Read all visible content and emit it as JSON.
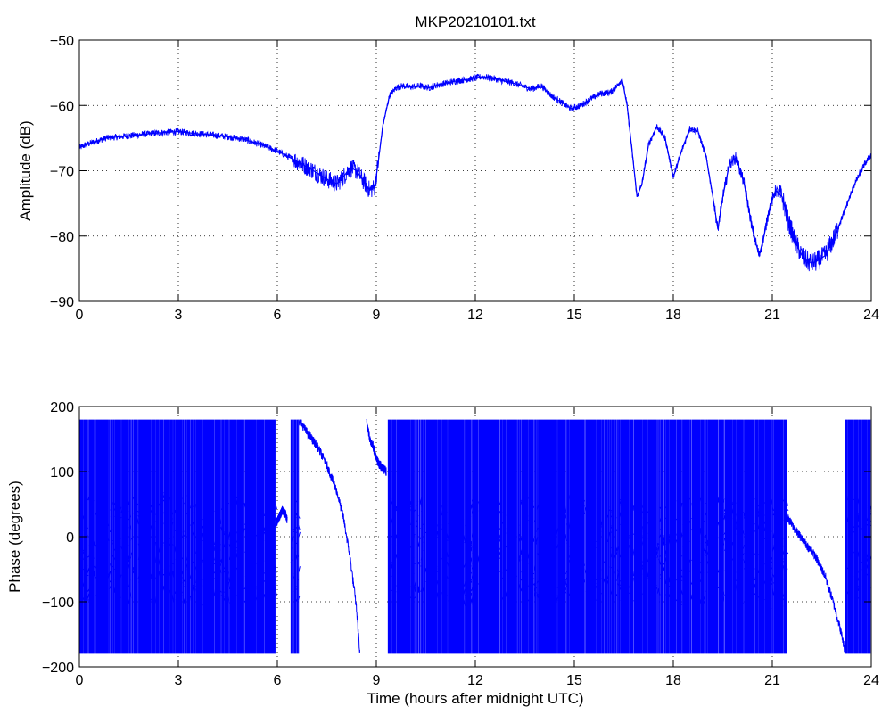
{
  "chart_data": [
    {
      "type": "line",
      "title": "MKP20210101.txt",
      "xlabel": "",
      "ylabel": "Amplitude (dB)",
      "xlim": [
        0,
        24
      ],
      "ylim": [
        -90,
        -50
      ],
      "xticks": [
        0,
        3,
        6,
        9,
        12,
        15,
        18,
        21,
        24
      ],
      "xtick_labels": [
        "0",
        "3",
        "6",
        "9",
        "12",
        "15",
        "18",
        "21",
        "24"
      ],
      "yticks": [
        -90,
        -80,
        -70,
        -60,
        -50
      ],
      "ytick_labels": [
        "−90",
        "−80",
        "−70",
        "−60",
        "−50"
      ],
      "grid": true,
      "color": "#0000ff",
      "series": [
        {
          "x": [
            0,
            0.2,
            0.5,
            0.8,
            1.2,
            1.8,
            2.4,
            3.0,
            3.5,
            4.0,
            4.5,
            5.0,
            5.5,
            6.0,
            6.5,
            7.0,
            7.5,
            7.8,
            8.0,
            8.2,
            8.4,
            8.6,
            8.8,
            8.95,
            9.05,
            9.2,
            9.4,
            9.6,
            9.8,
            10.0,
            10.3,
            10.6,
            10.9,
            11.2,
            11.5,
            11.8,
            12.2,
            12.5,
            12.8,
            13.1,
            13.4,
            13.7,
            14.0,
            14.3,
            14.6,
            14.9,
            15.2,
            15.5,
            15.8,
            16.1,
            16.3,
            16.45,
            16.6,
            16.75,
            16.9,
            17.05,
            17.25,
            17.5,
            17.75,
            18.0,
            18.25,
            18.5,
            18.75,
            19.0,
            19.2,
            19.35,
            19.5,
            19.7,
            19.9,
            20.15,
            20.4,
            20.6,
            20.75,
            20.9,
            21.1,
            21.3,
            21.5,
            21.7,
            21.9,
            22.1,
            22.3,
            22.6,
            22.9,
            23.2,
            23.5,
            23.8,
            24.0
          ],
          "y": [
            -66.5,
            -66.0,
            -65.5,
            -65.0,
            -64.8,
            -64.5,
            -64.2,
            -64.0,
            -64.3,
            -64.5,
            -64.8,
            -65.2,
            -66.0,
            -67.0,
            -68.3,
            -69.7,
            -71.3,
            -72.0,
            -71.0,
            -69.5,
            -70.0,
            -71.5,
            -73.0,
            -72.5,
            -69.0,
            -63.0,
            -58.5,
            -57.3,
            -57.0,
            -57.2,
            -57.0,
            -57.3,
            -56.8,
            -56.5,
            -56.2,
            -56.0,
            -55.6,
            -55.8,
            -56.2,
            -56.5,
            -57.0,
            -57.5,
            -57.0,
            -58.5,
            -59.5,
            -60.5,
            -60.0,
            -59.0,
            -58.2,
            -58.0,
            -57.0,
            -56.0,
            -60.0,
            -67.0,
            -74.0,
            -72.0,
            -66.0,
            -63.2,
            -65.0,
            -71.0,
            -67.0,
            -63.5,
            -64.0,
            -68.0,
            -74.0,
            -79.0,
            -74.0,
            -69.0,
            -68.0,
            -72.0,
            -79.0,
            -83.0,
            -80.0,
            -76.0,
            -73.0,
            -74.0,
            -78.0,
            -81.0,
            -83.0,
            -84.0,
            -84.0,
            -83.0,
            -80.0,
            -76.0,
            -72.0,
            -69.0,
            -67.5
          ]
        }
      ]
    },
    {
      "type": "line",
      "title": "",
      "xlabel": "Time (hours after midnight UTC)",
      "ylabel": "Phase (degrees)",
      "xlim": [
        0,
        24
      ],
      "ylim": [
        -200,
        200
      ],
      "xticks": [
        0,
        3,
        6,
        9,
        12,
        15,
        18,
        21,
        24
      ],
      "xtick_labels": [
        "0",
        "3",
        "6",
        "9",
        "12",
        "15",
        "18",
        "21",
        "24"
      ],
      "yticks": [
        -200,
        -100,
        0,
        100,
        200
      ],
      "ytick_labels": [
        "−200",
        "−100",
        "0",
        "100",
        "200"
      ],
      "grid": true,
      "color": "#0000ff",
      "wrap_range": [
        -180,
        180
      ],
      "wrapping_intervals": [
        [
          0,
          5.95
        ],
        [
          6.4,
          6.65
        ],
        [
          9.35,
          21.45
        ],
        [
          23.2,
          24
        ]
      ],
      "series": [
        {
          "segments": [
            {
              "x": [
                5.95,
                6.05,
                6.15,
                6.25,
                6.3
              ],
              "y": [
                20,
                30,
                40,
                35,
                25
              ]
            },
            {
              "x": [
                6.65,
                6.9,
                7.2,
                7.5,
                7.8,
                8.0,
                8.2,
                8.4,
                8.5
              ],
              "y": [
                180,
                160,
                140,
                110,
                70,
                30,
                -30,
                -110,
                -180
              ]
            },
            {
              "x": [
                8.7,
                8.8,
                8.9,
                9.0,
                9.1,
                9.2,
                9.3
              ],
              "y": [
                180,
                150,
                140,
                120,
                110,
                105,
                100
              ]
            },
            {
              "x": [
                21.45,
                21.7,
                22.0,
                22.3,
                22.6,
                22.9,
                23.1,
                23.2
              ],
              "y": [
                30,
                10,
                -10,
                -30,
                -60,
                -110,
                -150,
                -175
              ]
            }
          ]
        }
      ]
    }
  ]
}
